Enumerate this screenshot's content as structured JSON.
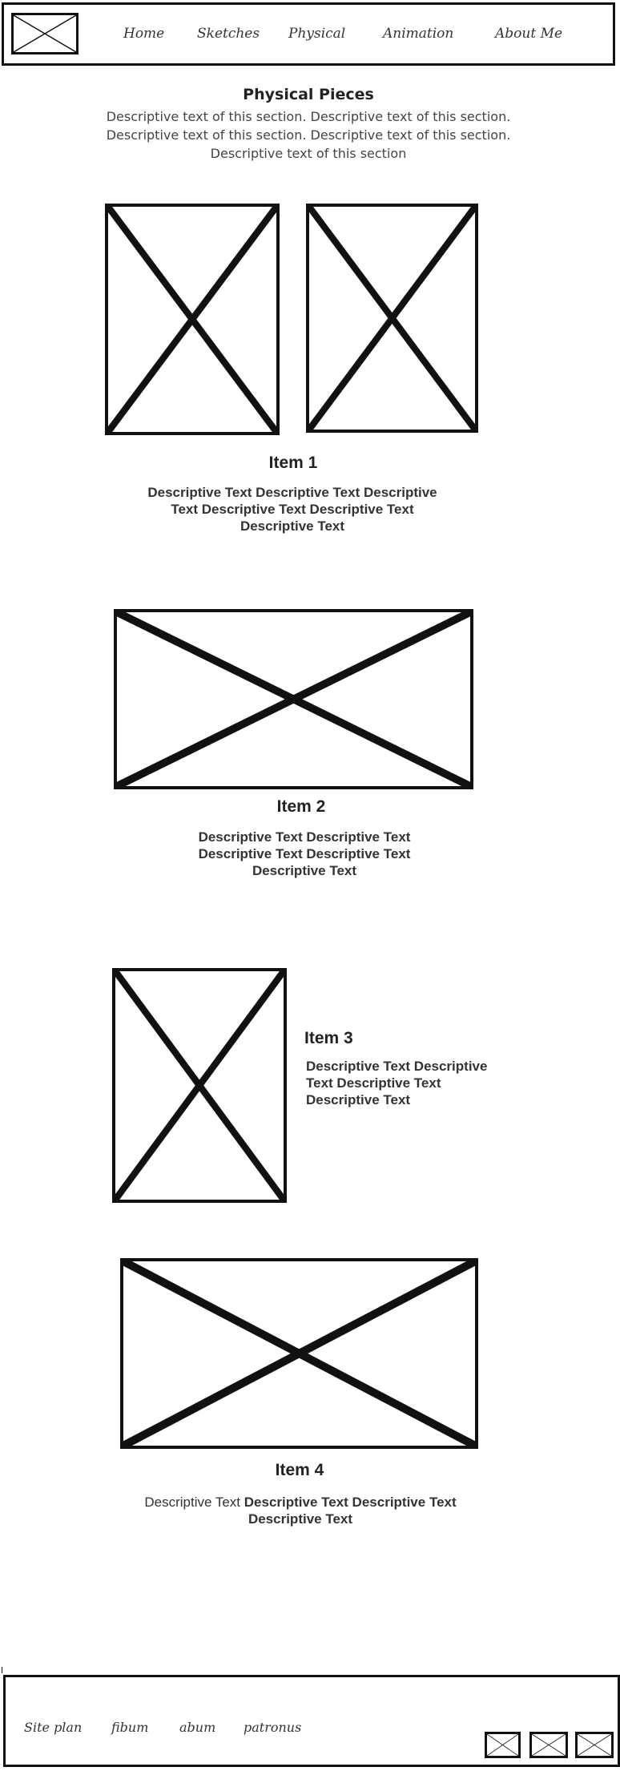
{
  "header": {
    "logo_icon": "placeholder-image-icon",
    "nav": [
      "Home",
      "Sketches",
      "Physical",
      "Animation",
      "About Me"
    ]
  },
  "intro": {
    "title": "Physical Pieces",
    "lines": [
      "Descriptive text of this section. Descriptive text of this section.",
      "Descriptive text of this section. Descriptive text of this section.",
      "Descriptive text of this section"
    ]
  },
  "items": [
    {
      "title": "Item 1",
      "lines": [
        "Descriptive Text Descriptive Text Descriptive",
        "Text Descriptive Text Descriptive Text",
        "Descriptive Text"
      ]
    },
    {
      "title": "Item 2",
      "lines": [
        "Descriptive Text Descriptive Text",
        "Descriptive Text Descriptive Text",
        "Descriptive Text"
      ]
    },
    {
      "title": "Item 3",
      "lines": [
        "Descriptive Text Descriptive",
        "Text Descriptive Text",
        "Descriptive Text"
      ]
    },
    {
      "title": "Item 4",
      "line1_plain": "Descriptive Text",
      "line1_bold": "Descriptive Text Descriptive Text",
      "line2": "Descriptive Text"
    }
  ],
  "footer": {
    "links": [
      "Site plan",
      "fibum",
      "abum",
      "patronus"
    ],
    "social_icons": [
      "placeholder-image-icon",
      "placeholder-image-icon",
      "placeholder-image-icon"
    ]
  }
}
